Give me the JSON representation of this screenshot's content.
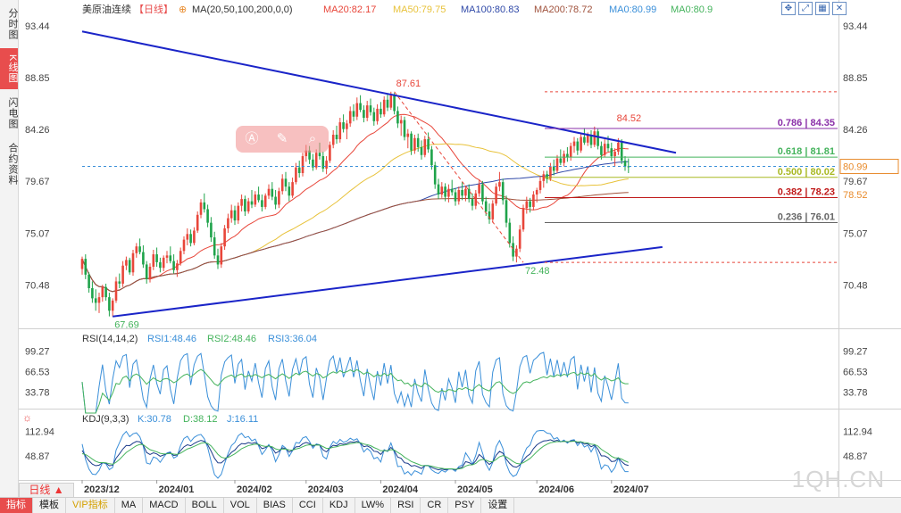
{
  "sidebar": {
    "tabs": [
      {
        "label": "分时图",
        "active": false
      },
      {
        "label": "K线图",
        "active": true
      },
      {
        "label": "闪电图",
        "active": false
      },
      {
        "label": "合约资料",
        "active": false
      }
    ]
  },
  "header": {
    "instrument": "美原油连续",
    "period": "【日线】",
    "ma_params": "MA(20,50,100,200,0,0)",
    "ma_items": [
      {
        "label": "MA20:82.17",
        "color": "#e8463a"
      },
      {
        "label": "MA50:79.75",
        "color": "#e8c23a"
      },
      {
        "label": "MA100:80.83",
        "color": "#2f49a8"
      },
      {
        "label": "MA200:78.72",
        "color": "#a0523c"
      },
      {
        "label": "MA0:80.99",
        "color": "#3a8fd9"
      },
      {
        "label": "MA0:80.9",
        "color": "#44b35c"
      }
    ]
  },
  "rsi_header": {
    "params": "RSI(14,14,2)",
    "items": [
      {
        "label": "RSI1:48.46",
        "color": "#3a8fd9"
      },
      {
        "label": "RSI2:48.46",
        "color": "#44b35c"
      },
      {
        "label": "RSI3:36.04",
        "color": "#3a8fd9"
      }
    ]
  },
  "kdj_header": {
    "params": "KDJ(9,3,3)",
    "items": [
      {
        "label": "K:30.78",
        "color": "#3a8fd9"
      },
      {
        "label": "D:38.12",
        "color": "#44b35c"
      },
      {
        "label": "J:16.11",
        "color": "#3a8fd9"
      }
    ]
  },
  "chart_data": {
    "type": "candlestick",
    "y_ticks": [
      "93.44",
      "88.85",
      "84.26",
      "79.67",
      "75.07",
      "70.48"
    ],
    "ylim": [
      66.8,
      94.0
    ],
    "price_labels": [
      {
        "text": "80.99",
        "value": 80.99,
        "color": "#e88a2a",
        "boxed": true
      },
      {
        "text": "78.52",
        "value": 78.52,
        "color": "#e88a2a",
        "boxed": false
      }
    ],
    "x_ticks": [
      "2023/12",
      "2024/01",
      "2024/02",
      "2024/03",
      "2024/04",
      "2024/05",
      "2024/06",
      "2024/07"
    ],
    "annotations": [
      {
        "text": "87.61",
        "value": 87.61,
        "bar": 92,
        "color": "#e8463a"
      },
      {
        "text": "84.52",
        "value": 84.52,
        "bar": 157,
        "color": "#e8463a"
      },
      {
        "text": "72.48",
        "value": 72.48,
        "bar": 130,
        "color": "#44b35c"
      },
      {
        "text": "67.69",
        "value": 67.69,
        "bar": 9,
        "color": "#44b35c"
      }
    ],
    "fibonacci": [
      {
        "text": "0.786 | 84.35",
        "value": 84.35,
        "color": "#8a2fa8"
      },
      {
        "text": "0.618 | 81.81",
        "value": 81.81,
        "color": "#44b35c"
      },
      {
        "text": "0.500 | 80.02",
        "value": 80.02,
        "color": "#a8b820"
      },
      {
        "text": "0.382 | 78.23",
        "value": 78.23,
        "color": "#c01818"
      },
      {
        "text": "0.236 | 76.01",
        "value": 76.01,
        "color": "#666666"
      }
    ],
    "fib_bounds": [
      87.61,
      72.48
    ],
    "trendlines": [
      {
        "from": [
          0,
          92.95
        ],
        "to": [
          175,
          82.2
        ],
        "color": "#1a24c8"
      },
      {
        "from": [
          9,
          67.69
        ],
        "to": [
          171,
          73.85
        ],
        "color": "#1a24c8"
      }
    ],
    "rsi": {
      "y_ticks": [
        "99.27",
        "66.53",
        "33.78"
      ],
      "ylim": [
        10,
        110
      ]
    },
    "kdj": {
      "y_ticks": [
        "112.94",
        "48.87"
      ],
      "ylim": [
        -10,
        130
      ]
    },
    "candles": [
      [
        71.9,
        73.0,
        71.4,
        72.8
      ],
      [
        72.8,
        73.2,
        71.0,
        71.4
      ],
      [
        71.4,
        71.6,
        69.8,
        70.2
      ],
      [
        70.2,
        70.8,
        68.9,
        69.3
      ],
      [
        69.3,
        70.1,
        68.2,
        68.9
      ],
      [
        68.9,
        69.8,
        68.0,
        69.4
      ],
      [
        69.4,
        70.5,
        69.0,
        70.3
      ],
      [
        70.3,
        70.6,
        69.1,
        69.4
      ],
      [
        69.4,
        69.8,
        67.7,
        68.2
      ],
      [
        68.2,
        69.3,
        67.69,
        69.1
      ],
      [
        69.1,
        71.2,
        68.9,
        70.8
      ],
      [
        70.8,
        71.5,
        70.2,
        70.6
      ],
      [
        70.6,
        72.6,
        70.3,
        72.2
      ],
      [
        72.2,
        73.0,
        71.8,
        72.7
      ],
      [
        72.7,
        72.9,
        71.4,
        71.6
      ],
      [
        71.6,
        73.6,
        71.3,
        73.3
      ],
      [
        73.3,
        74.2,
        72.9,
        73.9
      ],
      [
        73.9,
        74.6,
        73.2,
        73.4
      ],
      [
        73.4,
        74.0,
        72.0,
        72.3
      ],
      [
        72.3,
        72.6,
        70.6,
        71.0
      ],
      [
        71.0,
        72.4,
        70.7,
        72.1
      ],
      [
        72.1,
        73.6,
        71.8,
        73.2
      ],
      [
        73.2,
        73.8,
        72.1,
        72.5
      ],
      [
        72.5,
        72.9,
        71.6,
        72.0
      ],
      [
        72.0,
        73.1,
        71.7,
        72.9
      ],
      [
        72.9,
        73.5,
        72.4,
        73.1
      ],
      [
        73.1,
        73.9,
        72.4,
        72.6
      ],
      [
        72.6,
        73.2,
        71.5,
        71.8
      ],
      [
        71.8,
        72.7,
        71.2,
        72.4
      ],
      [
        72.4,
        73.8,
        72.2,
        73.5
      ],
      [
        73.5,
        74.8,
        73.2,
        74.5
      ],
      [
        74.5,
        75.5,
        74.0,
        75.0
      ],
      [
        75.0,
        75.4,
        73.9,
        74.2
      ],
      [
        74.2,
        75.6,
        74.0,
        75.3
      ],
      [
        75.3,
        77.0,
        75.1,
        76.7
      ],
      [
        76.7,
        78.1,
        76.4,
        77.8
      ],
      [
        77.8,
        78.6,
        76.9,
        77.2
      ],
      [
        77.2,
        77.6,
        75.6,
        76.0
      ],
      [
        76.0,
        76.5,
        74.3,
        74.7
      ],
      [
        74.7,
        75.2,
        72.8,
        73.1
      ],
      [
        73.1,
        73.7,
        71.9,
        72.3
      ],
      [
        72.3,
        74.2,
        72.0,
        73.9
      ],
      [
        73.9,
        75.8,
        73.6,
        75.5
      ],
      [
        75.5,
        76.8,
        75.1,
        76.4
      ],
      [
        76.4,
        77.6,
        76.0,
        77.1
      ],
      [
        77.1,
        77.5,
        75.8,
        76.2
      ],
      [
        76.2,
        77.8,
        75.9,
        77.5
      ],
      [
        77.5,
        78.5,
        77.0,
        78.1
      ],
      [
        78.1,
        78.4,
        76.6,
        77.0
      ],
      [
        77.0,
        78.2,
        76.8,
        77.9
      ],
      [
        77.9,
        78.9,
        77.3,
        77.6
      ],
      [
        77.6,
        78.8,
        77.4,
        78.5
      ],
      [
        78.5,
        79.2,
        77.8,
        78.0
      ],
      [
        78.0,
        78.5,
        77.0,
        77.4
      ],
      [
        77.4,
        78.6,
        77.2,
        78.4
      ],
      [
        78.4,
        79.4,
        78.1,
        79.0
      ],
      [
        79.0,
        79.6,
        78.0,
        78.3
      ],
      [
        78.3,
        78.9,
        77.2,
        77.6
      ],
      [
        77.6,
        79.1,
        77.3,
        78.8
      ],
      [
        78.8,
        80.3,
        78.5,
        79.9
      ],
      [
        79.9,
        80.5,
        78.8,
        79.2
      ],
      [
        79.2,
        79.6,
        77.9,
        78.4
      ],
      [
        78.4,
        80.0,
        78.2,
        79.6
      ],
      [
        79.6,
        81.3,
        79.4,
        80.9
      ],
      [
        80.9,
        81.5,
        80.0,
        80.4
      ],
      [
        80.4,
        82.2,
        80.1,
        81.9
      ],
      [
        81.9,
        82.9,
        81.4,
        82.4
      ],
      [
        82.4,
        82.8,
        81.2,
        81.6
      ],
      [
        81.6,
        82.1,
        80.6,
        80.9
      ],
      [
        80.9,
        82.5,
        80.7,
        82.2
      ],
      [
        82.2,
        83.1,
        81.6,
        81.9
      ],
      [
        81.9,
        82.3,
        80.5,
        80.8
      ],
      [
        80.8,
        81.9,
        80.3,
        81.5
      ],
      [
        81.5,
        83.2,
        81.3,
        82.9
      ],
      [
        82.9,
        84.2,
        82.6,
        83.8
      ],
      [
        83.8,
        84.6,
        83.0,
        83.4
      ],
      [
        83.4,
        85.3,
        83.1,
        84.9
      ],
      [
        84.9,
        85.6,
        84.0,
        84.3
      ],
      [
        84.3,
        85.1,
        83.4,
        84.8
      ],
      [
        84.8,
        86.3,
        84.5,
        85.9
      ],
      [
        85.9,
        86.5,
        85.0,
        85.4
      ],
      [
        85.4,
        87.1,
        85.1,
        86.6
      ],
      [
        86.6,
        87.3,
        85.8,
        86.0
      ],
      [
        86.0,
        86.4,
        84.9,
        85.3
      ],
      [
        85.3,
        86.8,
        85.0,
        86.4
      ],
      [
        86.4,
        87.0,
        85.5,
        85.8
      ],
      [
        85.8,
        86.2,
        84.6,
        85.0
      ],
      [
        85.0,
        86.5,
        84.7,
        86.1
      ],
      [
        86.1,
        86.7,
        85.3,
        85.6
      ],
      [
        85.6,
        87.2,
        85.4,
        86.9
      ],
      [
        86.9,
        87.4,
        85.9,
        86.2
      ],
      [
        86.2,
        87.61,
        86.0,
        87.3
      ],
      [
        87.3,
        87.5,
        85.6,
        85.9
      ],
      [
        85.9,
        86.3,
        84.4,
        84.8
      ],
      [
        84.8,
        85.5,
        83.7,
        85.1
      ],
      [
        85.1,
        85.4,
        83.3,
        83.6
      ],
      [
        83.6,
        84.3,
        82.6,
        83.9
      ],
      [
        83.9,
        84.1,
        82.0,
        82.4
      ],
      [
        82.4,
        83.8,
        82.1,
        83.5
      ],
      [
        83.5,
        83.9,
        82.3,
        82.7
      ],
      [
        82.7,
        83.3,
        81.6,
        82.0
      ],
      [
        82.0,
        83.7,
        81.8,
        83.4
      ],
      [
        83.4,
        84.0,
        82.2,
        82.5
      ],
      [
        82.5,
        82.8,
        80.7,
        81.1
      ],
      [
        81.1,
        81.4,
        79.0,
        79.4
      ],
      [
        79.4,
        79.9,
        78.1,
        78.5
      ],
      [
        78.5,
        79.6,
        78.2,
        79.2
      ],
      [
        79.2,
        79.5,
        77.9,
        78.3
      ],
      [
        78.3,
        79.4,
        77.8,
        79.0
      ],
      [
        79.0,
        79.8,
        78.4,
        78.7
      ],
      [
        78.7,
        79.1,
        77.5,
        77.9
      ],
      [
        77.9,
        79.2,
        77.6,
        78.9
      ],
      [
        78.9,
        79.6,
        78.0,
        78.4
      ],
      [
        78.4,
        79.3,
        77.9,
        79.0
      ],
      [
        79.0,
        79.4,
        77.8,
        78.1
      ],
      [
        78.1,
        78.6,
        77.1,
        77.5
      ],
      [
        77.5,
        78.9,
        77.2,
        78.6
      ],
      [
        78.6,
        79.8,
        78.3,
        79.4
      ],
      [
        79.4,
        79.7,
        77.6,
        77.9
      ],
      [
        77.9,
        78.3,
        76.6,
        77.0
      ],
      [
        77.0,
        77.7,
        75.9,
        76.3
      ],
      [
        76.3,
        78.0,
        76.0,
        77.7
      ],
      [
        77.7,
        79.5,
        77.5,
        79.2
      ],
      [
        79.2,
        80.5,
        78.8,
        79.6
      ],
      [
        79.6,
        79.9,
        77.6,
        78.0
      ],
      [
        78.0,
        78.4,
        75.6,
        76.0
      ],
      [
        76.0,
        76.4,
        73.8,
        74.2
      ],
      [
        74.2,
        74.8,
        72.6,
        73.0
      ],
      [
        73.0,
        74.0,
        72.48,
        73.7
      ],
      [
        73.7,
        75.8,
        73.4,
        75.4
      ],
      [
        75.4,
        77.6,
        75.2,
        77.3
      ],
      [
        77.3,
        78.3,
        76.8,
        77.9
      ],
      [
        77.9,
        78.2,
        76.9,
        77.4
      ],
      [
        77.4,
        78.8,
        77.1,
        78.5
      ],
      [
        78.5,
        79.1,
        77.8,
        78.9
      ],
      [
        78.9,
        80.1,
        78.6,
        79.7
      ],
      [
        79.7,
        80.6,
        79.1,
        80.3
      ],
      [
        80.3,
        80.6,
        79.5,
        79.9
      ],
      [
        79.9,
        81.3,
        79.7,
        81.0
      ],
      [
        81.0,
        81.6,
        80.2,
        80.6
      ],
      [
        80.6,
        82.0,
        80.4,
        81.7
      ],
      [
        81.7,
        82.5,
        81.1,
        81.3
      ],
      [
        81.3,
        82.4,
        81.0,
        82.1
      ],
      [
        82.1,
        82.7,
        81.4,
        81.8
      ],
      [
        81.8,
        83.1,
        81.5,
        82.8
      ],
      [
        82.8,
        83.6,
        82.2,
        83.2
      ],
      [
        83.2,
        83.5,
        82.0,
        82.4
      ],
      [
        82.4,
        83.9,
        82.2,
        83.6
      ],
      [
        83.6,
        84.4,
        82.9,
        83.1
      ],
      [
        83.1,
        84.0,
        82.8,
        83.8
      ],
      [
        83.8,
        84.2,
        82.6,
        82.9
      ],
      [
        82.9,
        84.52,
        82.7,
        84.1
      ],
      [
        84.1,
        84.3,
        82.5,
        82.8
      ],
      [
        82.8,
        83.2,
        81.6,
        82.0
      ],
      [
        82.0,
        83.4,
        81.8,
        83.0
      ],
      [
        83.0,
        83.7,
        82.3,
        82.6
      ],
      [
        82.6,
        83.1,
        81.5,
        81.9
      ],
      [
        81.9,
        82.6,
        81.0,
        82.3
      ],
      [
        82.3,
        83.5,
        82.0,
        83.1
      ],
      [
        83.1,
        83.4,
        81.2,
        81.5
      ],
      [
        81.5,
        81.9,
        80.6,
        81.0
      ],
      [
        81.0,
        81.7,
        80.4,
        80.99
      ]
    ]
  },
  "toolbar": {
    "items": [
      "指标",
      "模板",
      "VIP指标",
      "MA",
      "MACD",
      "BOLL",
      "VOL",
      "BIAS",
      "CCI",
      "KDJ",
      "LW%",
      "RSI",
      "CR",
      "PSY",
      "设置"
    ]
  },
  "period_button": "日线 ▲",
  "watermark": "1QH.CN"
}
